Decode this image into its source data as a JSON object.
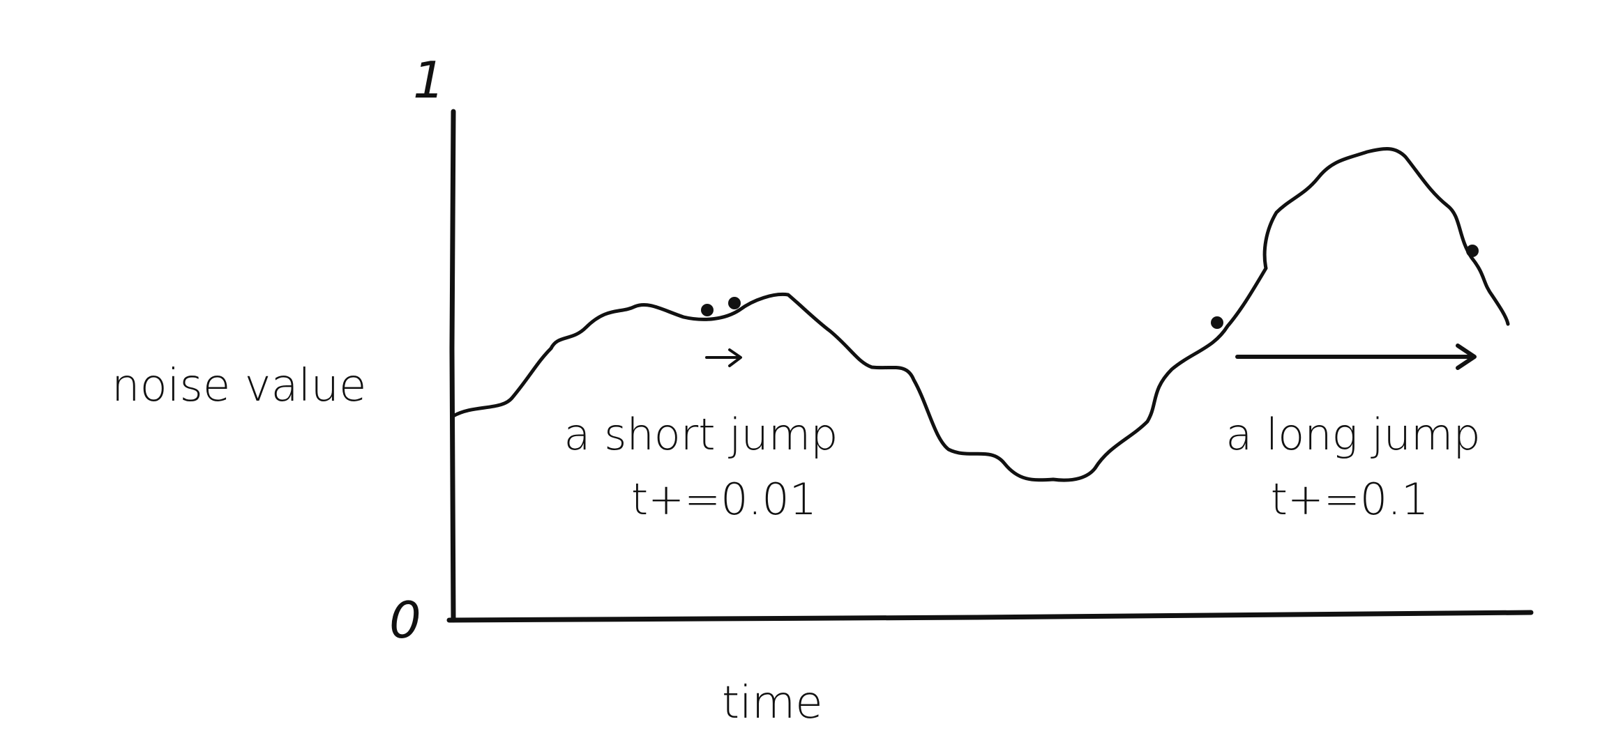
{
  "diagram": {
    "axis": {
      "y_label": "noise value",
      "x_label": "time",
      "y_tick_top": "1",
      "y_tick_bottom": "0"
    },
    "short_jump": {
      "title": "a short jump",
      "formula": "t+=0.01"
    },
    "long_jump": {
      "title": "a long jump",
      "formula": "t+=0.1"
    },
    "colors": {
      "ink": "#111111",
      "background": "#ffffff"
    }
  }
}
